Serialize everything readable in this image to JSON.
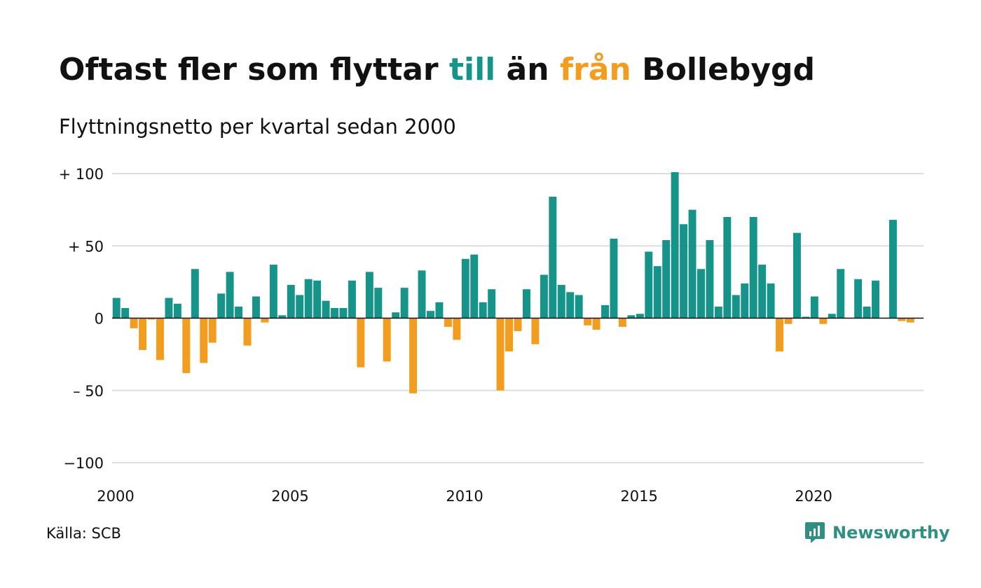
{
  "header": {
    "title_parts": [
      "Oftast fler som flyttar ",
      "till",
      " än ",
      "från",
      " Bollebygd"
    ],
    "subtitle": "Flyttningsnetto per kvartal sedan 2000"
  },
  "footer": {
    "source": "Källa: SCB",
    "brand": "Newsworthy",
    "brand_icon": "newsworthy-logo-icon"
  },
  "colors": {
    "positive": "#16948a",
    "negative": "#f29d1f",
    "brand": "#2f8f83",
    "grid": "#dddddd",
    "text": "#111111"
  },
  "chart_data": {
    "type": "bar",
    "x_start": 2000.0,
    "x_step": 0.25,
    "xlim": [
      2000,
      2023.25
    ],
    "ylim": [
      -100,
      100
    ],
    "yticks": [
      100,
      50,
      0,
      -50,
      -100
    ],
    "ytick_labels": [
      "+ 100",
      "+  50",
      "0",
      "– 50",
      "−100"
    ],
    "xticks": [
      2000,
      2005,
      2010,
      2015,
      2020
    ],
    "xtick_labels": [
      "2000",
      "2005",
      "2010",
      "2015",
      "2020"
    ],
    "grid": true,
    "values": [
      14,
      7,
      -7,
      -22,
      -1,
      -29,
      14,
      10,
      -38,
      34,
      -31,
      -17,
      17,
      32,
      8,
      -19,
      15,
      -3,
      37,
      2,
      23,
      16,
      27,
      26,
      12,
      7,
      7,
      26,
      -34,
      32,
      21,
      -30,
      4,
      21,
      -52,
      33,
      5,
      11,
      -6,
      -15,
      41,
      44,
      11,
      20,
      -50,
      -23,
      -9,
      20,
      -18,
      30,
      84,
      23,
      18,
      16,
      -5,
      -8,
      9,
      55,
      -6,
      2,
      3,
      46,
      36,
      54,
      101,
      65,
      75,
      34,
      54,
      8,
      70,
      16,
      24,
      70,
      37,
      24,
      -23,
      -4,
      59,
      1,
      15,
      -4,
      3,
      34,
      0,
      27,
      8,
      26,
      0,
      68,
      -2,
      -3
    ]
  }
}
